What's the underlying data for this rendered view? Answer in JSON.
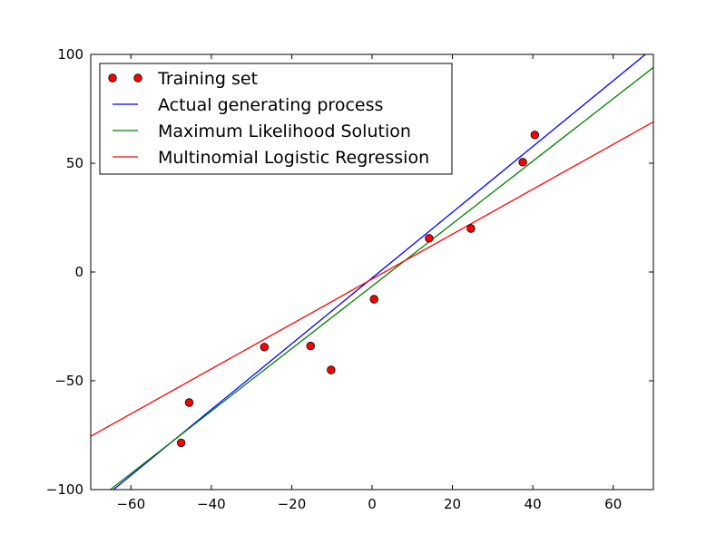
{
  "chart_data": {
    "type": "scatter",
    "title": "",
    "xlabel": "",
    "ylabel": "",
    "xlim": [
      -70,
      70
    ],
    "ylim": [
      -100,
      100
    ],
    "grid": false,
    "legend_placement": "top-left",
    "xticks": [
      -60,
      -40,
      -20,
      0,
      20,
      40,
      60
    ],
    "xtick_labels": [
      "−60",
      "−40",
      "−20",
      "0",
      "20",
      "40",
      "60"
    ],
    "yticks": [
      -100,
      -50,
      0,
      50,
      100
    ],
    "ytick_labels": [
      "−100",
      "−50",
      "0",
      "50",
      "100"
    ],
    "points": {
      "name": "Training set",
      "color": "#ff0000",
      "x": [
        -47.5,
        -45.5,
        -26.8,
        -15.3,
        -10.2,
        0.5,
        14.2,
        24.6,
        37.5,
        40.5
      ],
      "y": [
        -78.5,
        -60,
        -34.5,
        -34,
        -45,
        -12.5,
        15.5,
        20,
        50.5,
        63
      ]
    },
    "lines": [
      {
        "name": "Actual generating process",
        "color": "#0000ff",
        "x": [
          -65,
          68
        ],
        "y": [
          -101,
          100
        ]
      },
      {
        "name": "Maximum Likelihood Solution",
        "color": "#008000",
        "x": [
          -70,
          70
        ],
        "y": [
          -107,
          94
        ]
      },
      {
        "name": "Multinomial Logistic Regression",
        "color": "#ff0000",
        "x": [
          -70,
          70
        ],
        "y": [
          -75.5,
          69
        ]
      }
    ]
  }
}
